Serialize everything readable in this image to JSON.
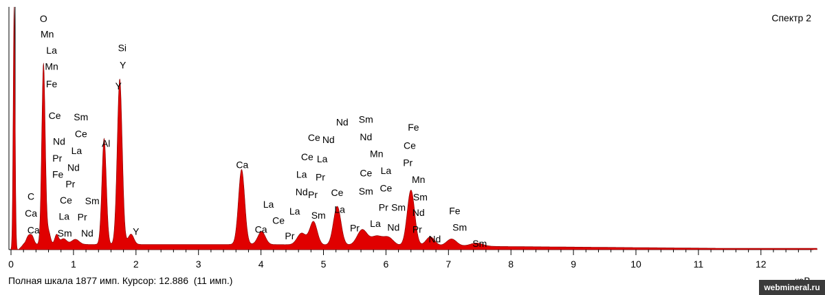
{
  "spectrum_name": "Спектр 2",
  "status": {
    "full_scale_label": "Полная шкала",
    "full_scale_counts": "1877",
    "counts_unit": "имп.",
    "cursor_label": "Курсор:",
    "cursor_value": "12.886",
    "cursor_counts": "(11 имп.)"
  },
  "x_unit": "кэВ",
  "watermark": "webmineral.ru",
  "colors": {
    "spectrum_fill": "#e00000",
    "spectrum_line": "#800000",
    "axis": "#000000"
  },
  "chart_data": {
    "type": "area",
    "xlim": [
      0,
      12.9
    ],
    "ylim": [
      0,
      1877
    ],
    "grid": false,
    "legend": "none",
    "x_ticks": [
      "0",
      "1",
      "2",
      "3",
      "4",
      "5",
      "6",
      "7",
      "8",
      "9",
      "10",
      "11",
      "12"
    ],
    "x_unit": "кэВ",
    "background": 40,
    "peaks": [
      {
        "x": 0.05,
        "y": 1877,
        "w": 0.015
      },
      {
        "x": 0.28,
        "y": 65,
        "w": 0.035
      },
      {
        "x": 0.34,
        "y": 55,
        "w": 0.03
      },
      {
        "x": 0.52,
        "y": 1400,
        "w": 0.028
      },
      {
        "x": 0.6,
        "y": 100,
        "w": 0.03
      },
      {
        "x": 0.73,
        "y": 75,
        "w": 0.03
      },
      {
        "x": 0.84,
        "y": 45,
        "w": 0.05
      },
      {
        "x": 1.03,
        "y": 40,
        "w": 0.06
      },
      {
        "x": 1.49,
        "y": 820,
        "w": 0.035
      },
      {
        "x": 1.74,
        "y": 1280,
        "w": 0.04
      },
      {
        "x": 1.92,
        "y": 80,
        "w": 0.045
      },
      {
        "x": 3.69,
        "y": 580,
        "w": 0.05
      },
      {
        "x": 4.01,
        "y": 100,
        "w": 0.06
      },
      {
        "x": 4.65,
        "y": 90,
        "w": 0.07
      },
      {
        "x": 4.84,
        "y": 180,
        "w": 0.06
      },
      {
        "x": 5.22,
        "y": 300,
        "w": 0.06
      },
      {
        "x": 5.62,
        "y": 120,
        "w": 0.08
      },
      {
        "x": 5.85,
        "y": 70,
        "w": 0.09
      },
      {
        "x": 6.04,
        "y": 60,
        "w": 0.08
      },
      {
        "x": 6.4,
        "y": 430,
        "w": 0.06
      },
      {
        "x": 6.71,
        "y": 70,
        "w": 0.07
      },
      {
        "x": 7.05,
        "y": 55,
        "w": 0.08
      },
      {
        "x": 7.45,
        "y": 25,
        "w": 0.1
      }
    ],
    "annotations": [
      {
        "text": "O",
        "x": 0.52,
        "y": 1760
      },
      {
        "text": "Mn",
        "x": 0.58,
        "y": 1640
      },
      {
        "text": "La",
        "x": 0.65,
        "y": 1515
      },
      {
        "text": "Mn",
        "x": 0.65,
        "y": 1390
      },
      {
        "text": "Fe",
        "x": 0.65,
        "y": 1255
      },
      {
        "text": "Ce",
        "x": 0.7,
        "y": 1010
      },
      {
        "text": "Nd",
        "x": 0.77,
        "y": 810
      },
      {
        "text": "Pr",
        "x": 0.74,
        "y": 680
      },
      {
        "text": "Fe",
        "x": 0.75,
        "y": 555
      },
      {
        "text": "Ce",
        "x": 0.88,
        "y": 355
      },
      {
        "text": "La",
        "x": 0.85,
        "y": 230
      },
      {
        "text": "Sm",
        "x": 0.86,
        "y": 100
      },
      {
        "text": "Sm",
        "x": 1.12,
        "y": 1000
      },
      {
        "text": "Ce",
        "x": 1.12,
        "y": 870
      },
      {
        "text": "La",
        "x": 1.05,
        "y": 740
      },
      {
        "text": "Nd",
        "x": 1.0,
        "y": 610
      },
      {
        "text": "Pr",
        "x": 0.95,
        "y": 480
      },
      {
        "text": "Sm",
        "x": 1.3,
        "y": 350
      },
      {
        "text": "Pr",
        "x": 1.14,
        "y": 225
      },
      {
        "text": "Nd",
        "x": 1.22,
        "y": 100
      },
      {
        "text": "C",
        "x": 0.32,
        "y": 385
      },
      {
        "text": "Ca",
        "x": 0.32,
        "y": 255
      },
      {
        "text": "Ca",
        "x": 0.36,
        "y": 125
      },
      {
        "text": "Al",
        "x": 1.52,
        "y": 795
      },
      {
        "text": "Si",
        "x": 1.78,
        "y": 1535
      },
      {
        "text": "Y",
        "x": 1.79,
        "y": 1400
      },
      {
        "text": "Y",
        "x": 1.72,
        "y": 1240
      },
      {
        "text": "Y",
        "x": 2.0,
        "y": 115
      },
      {
        "text": "Ca",
        "x": 3.7,
        "y": 630
      },
      {
        "text": "La",
        "x": 4.12,
        "y": 325
      },
      {
        "text": "Ca",
        "x": 4.0,
        "y": 130
      },
      {
        "text": "Ce",
        "x": 4.28,
        "y": 200
      },
      {
        "text": "La",
        "x": 4.54,
        "y": 270
      },
      {
        "text": "Pr",
        "x": 4.46,
        "y": 80
      },
      {
        "text": "Ce",
        "x": 4.85,
        "y": 840
      },
      {
        "text": "Nd",
        "x": 5.3,
        "y": 960
      },
      {
        "text": "Nd",
        "x": 5.08,
        "y": 825
      },
      {
        "text": "Ce",
        "x": 4.74,
        "y": 690
      },
      {
        "text": "La",
        "x": 4.98,
        "y": 675
      },
      {
        "text": "La",
        "x": 4.65,
        "y": 555
      },
      {
        "text": "Pr",
        "x": 4.95,
        "y": 535
      },
      {
        "text": "Nd",
        "x": 4.65,
        "y": 420
      },
      {
        "text": "Pr",
        "x": 4.83,
        "y": 400
      },
      {
        "text": "Ce",
        "x": 5.22,
        "y": 415
      },
      {
        "text": "Sm",
        "x": 4.92,
        "y": 240
      },
      {
        "text": "La",
        "x": 5.26,
        "y": 285
      },
      {
        "text": "Pr",
        "x": 5.5,
        "y": 140
      },
      {
        "text": "Sm",
        "x": 5.68,
        "y": 980
      },
      {
        "text": "Nd",
        "x": 5.68,
        "y": 845
      },
      {
        "text": "Mn",
        "x": 5.85,
        "y": 715
      },
      {
        "text": "La",
        "x": 6.0,
        "y": 585
      },
      {
        "text": "Ce",
        "x": 5.68,
        "y": 565
      },
      {
        "text": "Sm",
        "x": 5.68,
        "y": 425
      },
      {
        "text": "Ce",
        "x": 6.0,
        "y": 450
      },
      {
        "text": "Pr",
        "x": 5.96,
        "y": 300
      },
      {
        "text": "Sm",
        "x": 6.2,
        "y": 300
      },
      {
        "text": "La",
        "x": 5.83,
        "y": 175
      },
      {
        "text": "Nd",
        "x": 6.12,
        "y": 145
      },
      {
        "text": "Fe",
        "x": 6.44,
        "y": 920
      },
      {
        "text": "Ce",
        "x": 6.38,
        "y": 780
      },
      {
        "text": "Pr",
        "x": 6.35,
        "y": 645
      },
      {
        "text": "Mn",
        "x": 6.52,
        "y": 515
      },
      {
        "text": "Sm",
        "x": 6.55,
        "y": 380
      },
      {
        "text": "Nd",
        "x": 6.52,
        "y": 260
      },
      {
        "text": "Pr",
        "x": 6.5,
        "y": 130
      },
      {
        "text": "Nd",
        "x": 6.78,
        "y": 55
      },
      {
        "text": "Fe",
        "x": 7.1,
        "y": 275
      },
      {
        "text": "Sm",
        "x": 7.18,
        "y": 145
      },
      {
        "text": "Sm",
        "x": 7.5,
        "y": 20
      }
    ]
  }
}
